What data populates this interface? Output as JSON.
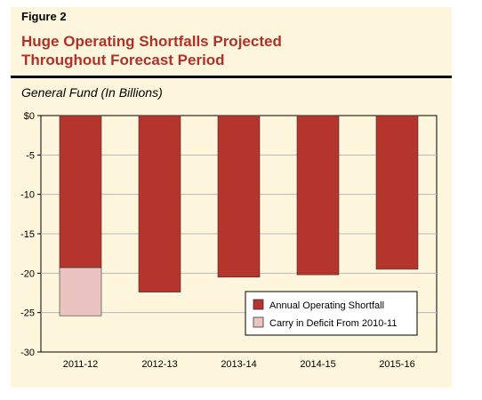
{
  "figure_label": "Figure 2",
  "title_line1": "Huge Operating Shortfalls Projected",
  "title_line2": "Throughout Forecast Period",
  "subtitle": "General Fund (In Billions)",
  "colors": {
    "shortfall": "#b5342b",
    "carry": "#ebc3c0",
    "title": "#b0302a",
    "plot_bg": "#fdf6dc"
  },
  "chart_data": {
    "type": "bar",
    "stacked": true,
    "categories": [
      "2011-12",
      "2012-13",
      "2013-14",
      "2014-15",
      "2015-16"
    ],
    "series": [
      {
        "name": "Annual Operating Shortfall",
        "values": [
          -19.3,
          -22.4,
          -20.5,
          -20.2,
          -19.5
        ]
      },
      {
        "name": "Carry in Deficit From 2010-11",
        "values": [
          -6.1,
          0,
          0,
          0,
          0
        ]
      }
    ],
    "ylim": [
      -30,
      0
    ],
    "yticks": [
      0,
      -5,
      -10,
      -15,
      -20,
      -25,
      -30
    ],
    "ytick_labels": [
      "$0",
      "-5",
      "-10",
      "-15",
      "-20",
      "-25",
      "-30"
    ],
    "grid": true,
    "legend_position": "bottom-right"
  }
}
